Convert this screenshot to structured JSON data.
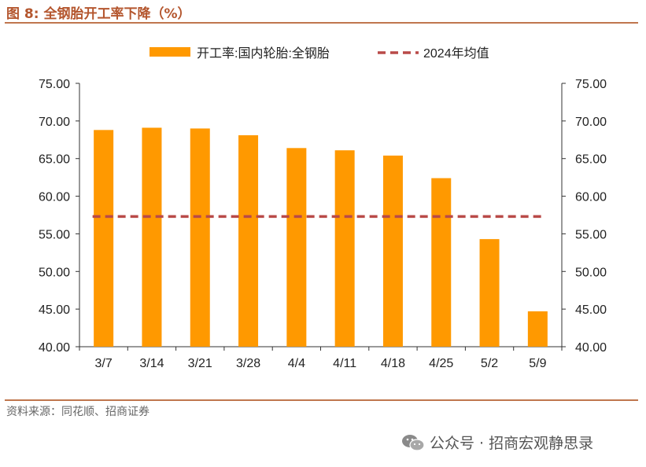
{
  "figure": {
    "title": "图 8:  全钢胎开工率下降（%）",
    "source": "资料来源：同花顺、招商证券",
    "watermark": "公众号 · 招商宏观静思录"
  },
  "colors": {
    "bar": "#ff9900",
    "avg_line": "#b94a48",
    "accent": "#b4562e"
  },
  "chart_data": {
    "type": "bar",
    "categories": [
      "3/7",
      "3/14",
      "3/21",
      "3/28",
      "4/4",
      "4/11",
      "4/18",
      "4/25",
      "5/2",
      "5/9"
    ],
    "series": [
      {
        "name": "开工率:国内轮胎:全钢胎",
        "type": "bar",
        "values": [
          68.8,
          69.1,
          69.0,
          68.1,
          66.4,
          66.1,
          65.4,
          62.4,
          54.3,
          44.7
        ]
      },
      {
        "name": "2024年均值",
        "type": "line",
        "style": "dashed",
        "values": [
          57.3,
          57.3,
          57.3,
          57.3,
          57.3,
          57.3,
          57.3,
          57.3,
          57.3,
          57.3
        ]
      }
    ],
    "ylim": [
      40,
      75
    ],
    "yticks": [
      "40.00",
      "45.00",
      "50.00",
      "55.00",
      "60.00",
      "65.00",
      "70.00",
      "75.00"
    ],
    "y2ticks": [
      "40.00",
      "45.00",
      "50.00",
      "55.00",
      "60.00",
      "65.00",
      "70.00",
      "75.00"
    ],
    "legend_position": "top",
    "grid": false
  }
}
